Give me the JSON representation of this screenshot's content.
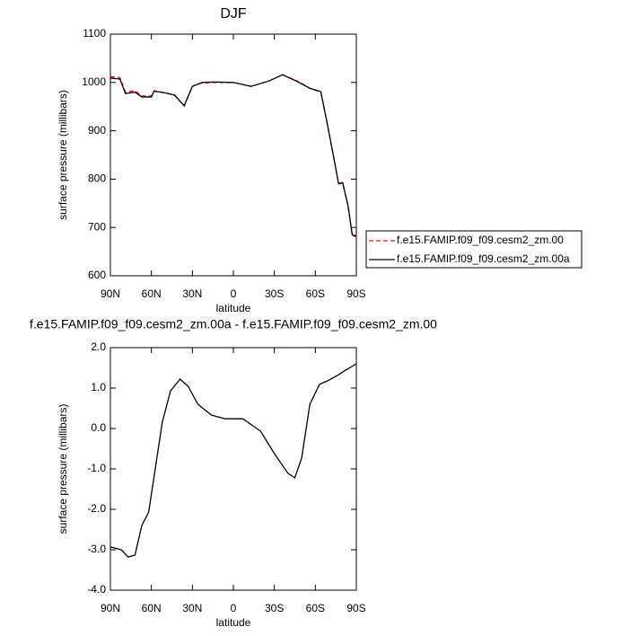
{
  "chart_data": [
    {
      "type": "line",
      "title": "DJF",
      "xlabel": "latitude",
      "ylabel": "surface pressure (millibars)",
      "x": [
        90,
        83,
        79,
        72,
        67,
        60,
        58,
        49,
        43,
        36,
        30,
        23,
        13,
        0,
        -13,
        -26,
        -36,
        -46,
        -56,
        -64,
        -69,
        -74,
        -77,
        -80,
        -84,
        -87,
        -90
      ],
      "series": [
        {
          "name": "f.e15.FAMIP.f09_f09.cesm2_zm.00",
          "color": "#ff0000",
          "style": "dashed",
          "values": [
            1012,
            1010,
            980,
            983,
            972,
            972,
            983,
            978,
            973,
            951,
            992,
            999,
            1000,
            1000,
            992,
            1003,
            1016,
            1004,
            988,
            980,
            910,
            836,
            790,
            792,
            743,
            684,
            680
          ]
        },
        {
          "name": "f.e15.FAMIP.f09_f09.cesm2_zm.00a",
          "color": "#000000",
          "style": "solid",
          "values": [
            1009,
            1007,
            977,
            980,
            970,
            970,
            982,
            978,
            974,
            952,
            992,
            1000,
            1001,
            1000,
            992,
            1003,
            1016,
            1003,
            988,
            981,
            911,
            837,
            791,
            793,
            744,
            685,
            682
          ]
        }
      ],
      "xlim": [
        90,
        -90
      ],
      "xticks": [
        {
          "value": 90,
          "label": "90N"
        },
        {
          "value": 60,
          "label": "60N"
        },
        {
          "value": 30,
          "label": "30N"
        },
        0,
        {
          "value": -30,
          "label": "30S"
        },
        {
          "value": -60,
          "label": "60S"
        },
        {
          "value": -90,
          "label": "90S"
        }
      ],
      "ylim": [
        600,
        1100
      ],
      "yticks": [
        600,
        700,
        800,
        900,
        1000,
        1100
      ],
      "legend": "right"
    },
    {
      "type": "line",
      "title": "f.e15.FAMIP.f09_f09.cesm2_zm.00a - f.e15.FAMIP.f09_f09.cesm2_zm.00",
      "xlabel": "latitude",
      "ylabel": "surface pressure (millibars)",
      "x": [
        90,
        82,
        77,
        72,
        67,
        62,
        58,
        52,
        46,
        39,
        33,
        26,
        16,
        6,
        -7,
        -20,
        -30,
        -40,
        -45,
        -50,
        -56,
        -63,
        -69,
        -76,
        -82,
        -90
      ],
      "series": [
        {
          "color": "#000000",
          "style": "solid",
          "values": [
            -2.93,
            -3.0,
            -3.18,
            -3.13,
            -2.4,
            -2.07,
            -1.18,
            0.16,
            0.93,
            1.22,
            1.04,
            0.6,
            0.33,
            0.24,
            0.24,
            -0.07,
            -0.62,
            -1.11,
            -1.22,
            -0.73,
            0.6,
            1.09,
            1.18,
            1.31,
            1.44,
            1.6
          ]
        }
      ],
      "xlim": [
        90,
        -90
      ],
      "xticks": [
        {
          "value": 90,
          "label": "90N"
        },
        {
          "value": 60,
          "label": "60N"
        },
        {
          "value": 30,
          "label": "30N"
        },
        0,
        {
          "value": -30,
          "label": "30S"
        },
        {
          "value": -60,
          "label": "60S"
        },
        {
          "value": -90,
          "label": "90S"
        }
      ],
      "ylim": [
        -4,
        2
      ],
      "yticks": [
        {
          "value": -4,
          "label": "-4.0"
        },
        {
          "value": -3,
          "label": "-3.0"
        },
        {
          "value": -2,
          "label": "-2.0"
        },
        {
          "value": -1,
          "label": "-1.0"
        },
        {
          "value": 0,
          "label": "0.0"
        },
        {
          "value": 1,
          "label": "1.0"
        },
        {
          "value": 2,
          "label": "2.0"
        }
      ]
    }
  ]
}
